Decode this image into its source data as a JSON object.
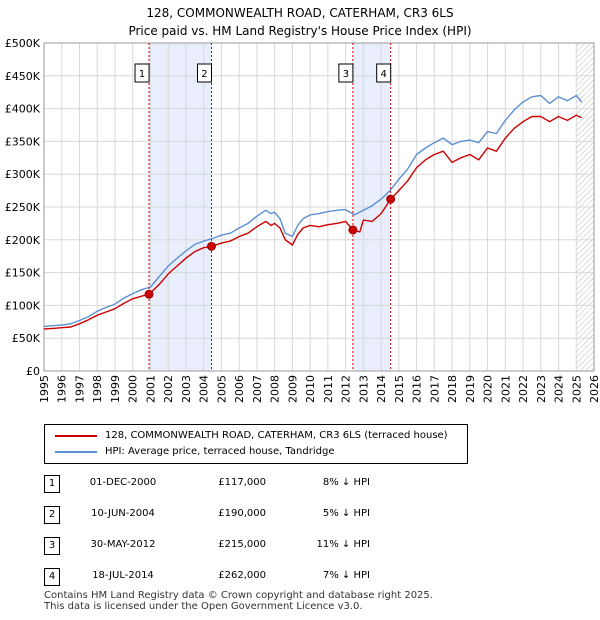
{
  "title_line1": "128, COMMONWEALTH ROAD, CATERHAM, CR3 6LS",
  "title_line2": "Price paid vs. HM Land Registry's House Price Index (HPI)",
  "chart_data": {
    "type": "line",
    "xlim": [
      1995,
      2026
    ],
    "ylim": [
      0,
      500000
    ],
    "y_ticks": [
      0,
      50000,
      100000,
      150000,
      200000,
      250000,
      300000,
      350000,
      400000,
      450000,
      500000
    ],
    "y_tick_labels": [
      "£0",
      "£50K",
      "£100K",
      "£150K",
      "£200K",
      "£250K",
      "£300K",
      "£350K",
      "£400K",
      "£450K",
      "£500K"
    ],
    "x_ticks": [
      1995,
      1996,
      1997,
      1998,
      1999,
      2000,
      2001,
      2002,
      2003,
      2004,
      2005,
      2006,
      2007,
      2008,
      2009,
      2010,
      2011,
      2012,
      2013,
      2014,
      2015,
      2016,
      2017,
      2018,
      2019,
      2020,
      2021,
      2022,
      2023,
      2024,
      2025,
      2026
    ],
    "shaded_ranges": [
      [
        2000.92,
        2004.44
      ],
      [
        2012.41,
        2014.54
      ]
    ],
    "hatched_from": 2025.0,
    "series": [
      {
        "name": "128, COMMONWEALTH ROAD, CATERHAM, CR3 6LS (terraced house)",
        "color": "#cc0000",
        "x": [
          1995.0,
          1995.5,
          1996.0,
          1996.5,
          1997.0,
          1997.5,
          1998.0,
          1998.5,
          1999.0,
          1999.5,
          2000.0,
          2000.5,
          2000.92,
          2001.5,
          2002.0,
          2002.5,
          2003.0,
          2003.5,
          2004.0,
          2004.44,
          2005.0,
          2005.5,
          2006.0,
          2006.5,
          2007.0,
          2007.5,
          2007.8,
          2008.0,
          2008.3,
          2008.6,
          2009.0,
          2009.3,
          2009.6,
          2010.0,
          2010.5,
          2011.0,
          2011.5,
          2012.0,
          2012.41,
          2012.8,
          2013.0,
          2013.5,
          2014.0,
          2014.54,
          2015.0,
          2015.5,
          2016.0,
          2016.5,
          2017.0,
          2017.5,
          2018.0,
          2018.5,
          2019.0,
          2019.5,
          2020.0,
          2020.5,
          2021.0,
          2021.5,
          2022.0,
          2022.5,
          2023.0,
          2023.5,
          2024.0,
          2024.5,
          2025.0,
          2025.3
        ],
        "values": [
          64000,
          65000,
          66000,
          67000,
          72000,
          78000,
          85000,
          90000,
          95000,
          103000,
          110000,
          114000,
          117000,
          132000,
          148000,
          160000,
          172000,
          182000,
          188000,
          190000,
          195000,
          198000,
          205000,
          210000,
          220000,
          228000,
          222000,
          225000,
          218000,
          200000,
          192000,
          208000,
          218000,
          222000,
          220000,
          223000,
          225000,
          228000,
          215000,
          212000,
          230000,
          228000,
          240000,
          262000,
          275000,
          290000,
          310000,
          322000,
          330000,
          335000,
          318000,
          325000,
          330000,
          322000,
          340000,
          335000,
          355000,
          370000,
          380000,
          388000,
          388000,
          380000,
          388000,
          382000,
          390000,
          386000
        ]
      },
      {
        "name": "HPI: Average price, terraced house, Tandridge",
        "color": "#5b8fd4",
        "x": [
          1995.0,
          1995.5,
          1996.0,
          1996.5,
          1997.0,
          1997.5,
          1998.0,
          1998.5,
          1999.0,
          1999.5,
          2000.0,
          2000.5,
          2001.0,
          2001.5,
          2002.0,
          2002.5,
          2003.0,
          2003.5,
          2004.0,
          2004.5,
          2005.0,
          2005.5,
          2006.0,
          2006.5,
          2007.0,
          2007.5,
          2007.8,
          2008.0,
          2008.3,
          2008.6,
          2009.0,
          2009.3,
          2009.6,
          2010.0,
          2010.5,
          2011.0,
          2011.5,
          2012.0,
          2012.5,
          2013.0,
          2013.5,
          2014.0,
          2014.5,
          2015.0,
          2015.5,
          2016.0,
          2016.5,
          2017.0,
          2017.5,
          2018.0,
          2018.5,
          2019.0,
          2019.5,
          2020.0,
          2020.5,
          2021.0,
          2021.5,
          2022.0,
          2022.5,
          2023.0,
          2023.5,
          2024.0,
          2024.5,
          2025.0,
          2025.3
        ],
        "values": [
          68000,
          69000,
          70000,
          72000,
          77000,
          83000,
          91000,
          97000,
          102000,
          111000,
          118000,
          124000,
          128000,
          144000,
          160000,
          172000,
          183000,
          193000,
          198000,
          202000,
          207000,
          210000,
          218000,
          225000,
          236000,
          245000,
          240000,
          242000,
          232000,
          210000,
          205000,
          222000,
          232000,
          238000,
          240000,
          243000,
          245000,
          246000,
          238000,
          245000,
          252000,
          262000,
          275000,
          292000,
          308000,
          330000,
          340000,
          348000,
          355000,
          345000,
          350000,
          352000,
          348000,
          365000,
          362000,
          382000,
          398000,
          410000,
          418000,
          420000,
          408000,
          418000,
          412000,
          420000,
          410000
        ]
      }
    ],
    "sales": [
      {
        "label": "1",
        "x": 2000.92,
        "value": 117000
      },
      {
        "label": "2",
        "x": 2004.44,
        "value": 190000
      },
      {
        "label": "3",
        "x": 2012.41,
        "value": 215000
      },
      {
        "label": "4",
        "x": 2014.54,
        "value": 262000
      }
    ]
  },
  "legend": {
    "property_label": "128, COMMONWEALTH ROAD, CATERHAM, CR3 6LS (terraced house)",
    "hpi_label": "HPI: Average price, terraced house, Tandridge"
  },
  "colors": {
    "property": "#cc0000",
    "hpi": "#5b8fd4",
    "shade": "#e8eefb",
    "grid": "#d8d8d8"
  },
  "sales_table": [
    {
      "num": "1",
      "date": "01-DEC-2000",
      "price": "£117,000",
      "hpi": "8% ↓ HPI"
    },
    {
      "num": "2",
      "date": "10-JUN-2004",
      "price": "£190,000",
      "hpi": "5% ↓ HPI"
    },
    {
      "num": "3",
      "date": "30-MAY-2012",
      "price": "£215,000",
      "hpi": "11% ↓ HPI"
    },
    {
      "num": "4",
      "date": "18-JUL-2014",
      "price": "£262,000",
      "hpi": "7% ↓ HPI"
    }
  ],
  "footer": {
    "line1": "Contains HM Land Registry data © Crown copyright and database right 2025.",
    "line2": "This data is licensed under the Open Government Licence v3.0."
  }
}
